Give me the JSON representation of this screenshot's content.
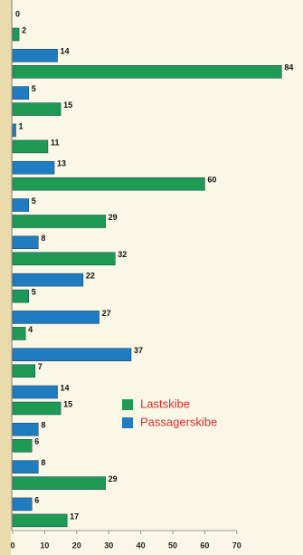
{
  "chart_data": {
    "type": "bar",
    "orientation": "horizontal",
    "categories": [
      null,
      null,
      null,
      null,
      null,
      null,
      null,
      null,
      null,
      null,
      null,
      null,
      null,
      null
    ],
    "series": [
      {
        "name": "Lastskibe",
        "color": "#1e9a55",
        "values": [
          2,
          84,
          15,
          11,
          60,
          29,
          32,
          5,
          4,
          7,
          15,
          6,
          29,
          17
        ]
      },
      {
        "name": "Passagerskibe",
        "color": "#1f7cc0",
        "values": [
          0,
          14,
          5,
          1,
          13,
          5,
          8,
          22,
          27,
          37,
          14,
          8,
          8,
          6
        ]
      }
    ],
    "xlim": [
      0,
      90
    ],
    "xticks": [
      0,
      10,
      20,
      30,
      40,
      50,
      60,
      70
    ]
  }
}
